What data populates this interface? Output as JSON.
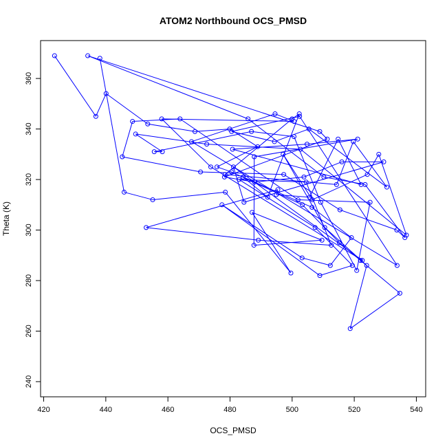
{
  "chart_data": {
    "type": "line",
    "title": "ATOM2 Northbound OCS_PMSD",
    "xlabel": "OCS_PMSD",
    "ylabel": "Theta (K)",
    "xlim": [
      419,
      543
    ],
    "ylim": [
      234,
      375
    ],
    "xticks": [
      420,
      440,
      460,
      480,
      500,
      520,
      540
    ],
    "yticks": [
      240,
      260,
      280,
      300,
      320,
      340,
      360
    ],
    "grid": false,
    "style": "points-and-lines",
    "color": "#0000ff",
    "series": [
      {
        "x": [
          423.5,
          436.8,
          440.1,
          453.5,
          468.7,
          479.9,
          488.9,
          475.8,
          480.5,
          503.3,
          515.2,
          522.0,
          534.7,
          518.7,
          524.0,
          510.5,
          497.1,
          506.5,
          524.2,
          527.9,
          536.8,
          502.7,
          472.5,
          449.6,
          458.2,
          455.6,
          486.9,
          500.6,
          509.2,
          520.8,
          525.1,
          501.9,
          463.9,
          448.6,
          445.3,
          470.5,
          497.3,
          515.4,
          533.7,
          536.3,
          523.5,
          510.2,
          485.8,
          434.2,
          508.9,
          511.3,
          478.2,
          487.9,
          503.8,
          516.0,
          529.5,
          484.5,
          481.1,
          522.6,
          473.8,
          458.0,
          500.6,
          494.5,
          467.6,
          533.8,
          502.4,
          480.5,
          494.3,
          505.4,
          530.5,
          519.7,
          514.3,
          478.4,
          500.0,
          502.3,
          492.1,
          484.2,
          506.4,
          519.1,
          512.3,
          503.2,
          477.4,
          508.9,
          519.4,
          507.4,
          482.9,
          504.5,
          512.6,
          489.1,
          453.0,
          495.4,
          494.9,
          505.6,
          514.8,
          522.2,
          480.8,
          504.8,
          521.1,
          487.8,
          487.7,
          509.6,
          487.1,
          499.6,
          478.5,
          455.1,
          445.9,
          438.1
        ],
        "y": [
          369,
          345,
          354,
          342,
          339,
          340,
          333,
          325,
          323,
          310,
          295,
          288,
          275,
          261,
          286,
          301,
          330,
          312,
          322,
          330,
          298,
          332,
          334,
          338,
          331,
          331,
          339,
          337,
          311,
          284,
          311,
          312,
          344,
          343,
          329,
          323,
          322,
          308,
          300,
          297,
          318,
          321,
          344,
          369,
          339,
          336,
          321,
          319,
          321,
          327,
          327,
          311,
          325,
          288,
          325,
          344,
          343,
          346,
          335,
          286,
          345,
          339,
          335,
          340,
          317,
          335,
          318,
          322,
          344,
          346,
          313,
          321,
          309,
          297,
          286,
          289,
          310,
          282,
          286,
          301,
          320,
          319,
          294,
          296,
          301,
          316,
          314,
          313,
          336,
          318,
          332,
          334,
          336,
          329,
          294,
          296,
          307,
          283,
          315,
          312,
          315,
          368
        ]
      }
    ]
  }
}
